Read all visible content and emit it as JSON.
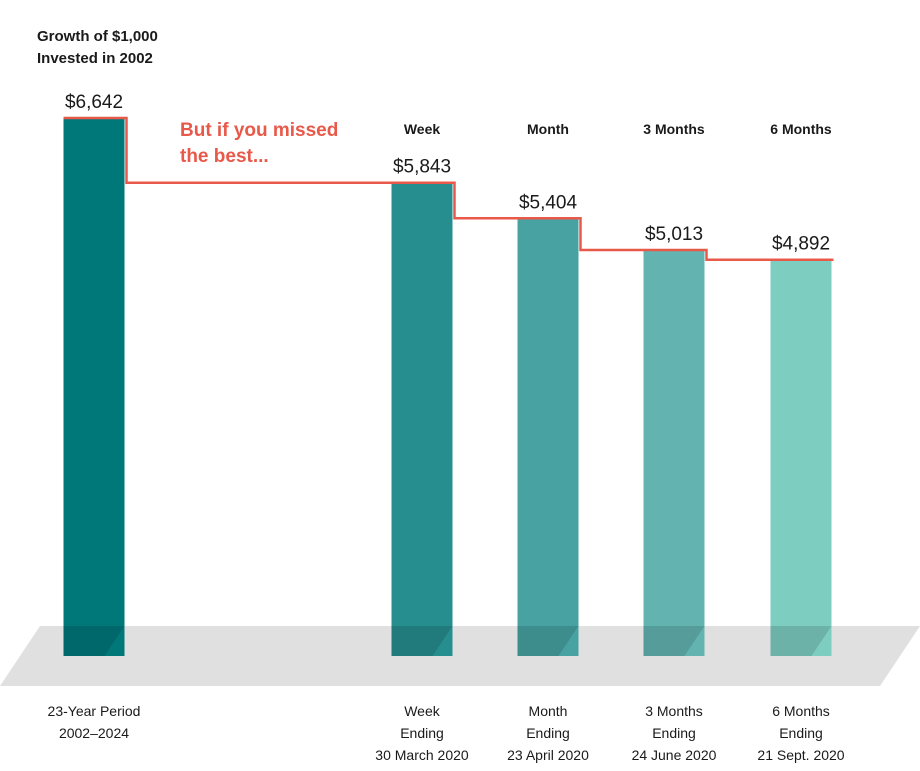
{
  "chart_data": {
    "type": "bar",
    "title_line1": "Growth of $1,000",
    "title_line2": "Invested in 2002",
    "annotation_line1": "But if you missed",
    "annotation_line2": "the best...",
    "categories": [
      {
        "header": "",
        "label_lines": [
          "23-Year Period",
          "2002–2024"
        ]
      },
      {
        "header": "Week",
        "label_lines": [
          "Week",
          "Ending",
          "30 March 2020"
        ]
      },
      {
        "header": "Month",
        "label_lines": [
          "Month",
          "Ending",
          "23 April 2020"
        ]
      },
      {
        "header": "3 Months",
        "label_lines": [
          "3 Months",
          "Ending",
          "24 June 2020"
        ]
      },
      {
        "header": "6 Months",
        "label_lines": [
          "6 Months",
          "Ending",
          "21 Sept. 2020"
        ]
      }
    ],
    "values": [
      6642,
      5843,
      5404,
      5013,
      4892
    ],
    "value_labels": [
      "$6,642",
      "$5,843",
      "$5,404",
      "$5,013",
      "$4,892"
    ],
    "ylim": [
      0,
      6642
    ],
    "grid": false,
    "legend": "none"
  },
  "colors": {
    "bars": [
      "#00787a",
      "#268e8f",
      "#48a2a2",
      "#63b4b1",
      "#7ecdc1"
    ],
    "step_line": "#e8594a",
    "annotation": "#e8594a",
    "floor": "#e0e0e0",
    "text": "#1a1a1a"
  }
}
